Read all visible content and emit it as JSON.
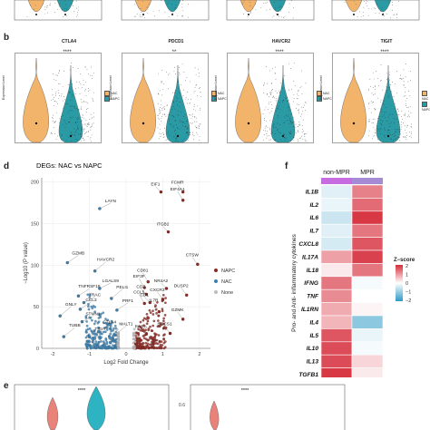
{
  "panel_labels": {
    "b": "b",
    "d": "d",
    "f": "f",
    "e": "e"
  },
  "panel_b": {
    "genes": [
      "CTLA4",
      "PDCD1",
      "HAVCR2",
      "TIGIT"
    ],
    "significance": [
      "****",
      "**",
      "****",
      "****"
    ],
    "ylabel": "Expression Level",
    "legend": [
      {
        "label": "NAC",
        "color": "#f2b36b"
      },
      {
        "label": "NAPC",
        "color": "#2a9aa5"
      }
    ]
  },
  "chart_data": [
    {
      "type": "scatter",
      "title": "DEGs: NAC vs NAPC",
      "xlabel": "Log2 Fold Change",
      "ylabel": "−Log10 (P value)",
      "xlim": [
        -2.3,
        2.3
      ],
      "ylim": [
        0,
        205
      ],
      "x_ticks": [
        "-2",
        "-1",
        "0",
        "1",
        "2"
      ],
      "y_ticks": [
        "0",
        "50",
        "100",
        "150",
        "200"
      ],
      "legend": [
        {
          "label": "NAPC",
          "color": "#8b2a24"
        },
        {
          "label": "NAC",
          "color": "#3c7fad"
        },
        {
          "label": "None",
          "color": "#bdbdbd"
        }
      ],
      "highlighted": [
        {
          "label": "LAYN",
          "x": -0.72,
          "y": 168,
          "group": "NAC"
        },
        {
          "label": "GZMB",
          "x": -1.6,
          "y": 103,
          "group": "NAC"
        },
        {
          "label": "HAVCR2",
          "x": -0.85,
          "y": 93,
          "group": "NAC"
        },
        {
          "label": "LGALS9",
          "x": -0.72,
          "y": 72,
          "group": "NAC"
        },
        {
          "label": "TNFRSF18",
          "x": -1.3,
          "y": 63,
          "group": "NAC"
        },
        {
          "label": "PELI1",
          "x": -0.4,
          "y": 60,
          "group": "NAC"
        },
        {
          "label": "TRAC",
          "x": -1.15,
          "y": 55,
          "group": "NAC"
        },
        {
          "label": "CCL3",
          "x": -1.25,
          "y": 47,
          "group": "NAC"
        },
        {
          "label": "GNLY",
          "x": -1.8,
          "y": 39,
          "group": "NAC"
        },
        {
          "label": "STMN1",
          "x": -1.2,
          "y": 32,
          "group": "NAC"
        },
        {
          "label": "PRF1",
          "x": -0.25,
          "y": 46,
          "group": "NAC"
        },
        {
          "label": "TUBB",
          "x": -1.7,
          "y": 14,
          "group": "NAC"
        },
        {
          "label": "TIGIT",
          "x": -1.0,
          "y": 14,
          "group": "NAC"
        },
        {
          "label": "CTLA4",
          "x": -0.75,
          "y": 20,
          "group": "NAC"
        },
        {
          "label": "MALT1",
          "x": -0.3,
          "y": 16,
          "group": "NAC"
        },
        {
          "label": "EIF1",
          "x": 0.95,
          "y": 188,
          "group": "NAPC"
        },
        {
          "label": "FCMR",
          "x": 1.55,
          "y": 188,
          "group": "NAPC"
        },
        {
          "label": "EIF4A1",
          "x": 1.55,
          "y": 178,
          "group": "NAPC"
        },
        {
          "label": "ITGB2",
          "x": 1.15,
          "y": 140,
          "group": "NAPC"
        },
        {
          "label": "CTSW",
          "x": 1.95,
          "y": 101,
          "group": "NAPC"
        },
        {
          "label": "CD81",
          "x": 0.6,
          "y": 80,
          "group": "NAPC"
        },
        {
          "label": "NR4A2",
          "x": 1.1,
          "y": 72,
          "group": "NAPC"
        },
        {
          "label": "DUSP2",
          "x": 1.65,
          "y": 64,
          "group": "NAPC"
        },
        {
          "label": "EIF3F",
          "x": 0.5,
          "y": 73,
          "group": "NAPC"
        },
        {
          "label": "CD7",
          "x": 0.55,
          "y": 65,
          "group": "NAPC"
        },
        {
          "label": "CXCR3",
          "x": 1.0,
          "y": 59,
          "group": "NAPC"
        },
        {
          "label": "CCL5",
          "x": 0.5,
          "y": 54,
          "group": "NAPC"
        },
        {
          "label": "CD1",
          "x": 0.65,
          "y": 55,
          "group": "NAPC"
        },
        {
          "label": "GZMK",
          "x": 1.55,
          "y": 35,
          "group": "NAPC"
        },
        {
          "label": "IL7R",
          "x": 0.9,
          "y": 44,
          "group": "NAPC"
        },
        {
          "label": "RARA",
          "x": 0.55,
          "y": 17,
          "group": "NAPC"
        },
        {
          "label": "SOCS1",
          "x": 1.2,
          "y": 18,
          "group": "NAPC"
        }
      ]
    },
    {
      "type": "heatmap",
      "ylabel": "Pro- and Anti- inflammatory cytokines",
      "columns": [
        "non-MPR",
        "MPR"
      ],
      "column_colors": [
        "#c76be0",
        "#a58bd6"
      ],
      "rows": [
        "IL1B",
        "IL2",
        "IL6",
        "IL7",
        "CXCL8",
        "IL17A",
        "IL18",
        "IFNG",
        "TNF",
        "IL1RN",
        "IL4",
        "IL5",
        "IL10",
        "IL13",
        "TGFB1"
      ],
      "values": [
        [
          -0.3,
          1.2
        ],
        [
          -0.2,
          1.4
        ],
        [
          -0.5,
          1.9
        ],
        [
          -0.3,
          1.3
        ],
        [
          -0.4,
          1.6
        ],
        [
          0.9,
          1.8
        ],
        [
          0.2,
          1.3
        ],
        [
          1.3,
          -0.1
        ],
        [
          1.1,
          0.0
        ],
        [
          0.8,
          0.1
        ],
        [
          0.7,
          -1.1
        ],
        [
          1.6,
          -0.2
        ],
        [
          1.7,
          -0.1
        ],
        [
          1.7,
          0.4
        ],
        [
          1.9,
          0.2
        ]
      ],
      "legend_title": "Z−score",
      "legend_ticks": [
        "2",
        "1",
        "0",
        "−1",
        "−2"
      ],
      "colorscale": {
        "low": "#2e9bc6",
        "mid": "#ffffff",
        "high": "#d62c3a"
      }
    }
  ],
  "panel_e": {
    "significance": [
      "****",
      "****"
    ],
    "ytick": "0.6"
  }
}
